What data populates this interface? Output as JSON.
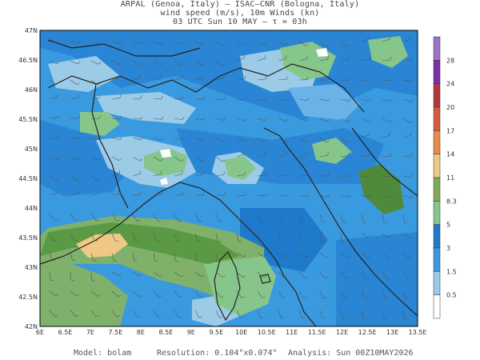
{
  "header": {
    "line1": "ARPAL (Genoa, Italy)  –  ISAC–CNR (Bologna, Italy)",
    "line2": "wind speed (m/s), 10m Winds (kn)",
    "line3": "03 UTC Sun 10 MAY  –  τ = 03h"
  },
  "map": {
    "lat_labels": [
      "47N",
      "46.5N",
      "46N",
      "45.5N",
      "45N",
      "44.5N",
      "44N",
      "43.5N",
      "43N",
      "42.5N",
      "42N"
    ],
    "lon_labels": [
      "6E",
      "6.5E",
      "7E",
      "7.5E",
      "8E",
      "8.5E",
      "9E",
      "9.5E",
      "10E",
      "10.5E",
      "11E",
      "11.5E",
      "12E",
      "12.5E",
      "13E",
      "13.5E"
    ]
  },
  "legend": {
    "levels": [
      "28",
      "24",
      "20",
      "17",
      "14",
      "11",
      "8.3",
      "5",
      "3",
      "1.5",
      "0.5"
    ],
    "colors": [
      "#9b74c8",
      "#7b2fa8",
      "#b03a3a",
      "#d65a3a",
      "#e98c4a",
      "#f0c886",
      "#7fa95a",
      "#86c68a",
      "#1f7acc",
      "#3a9ae0",
      "#9ccbe8",
      "#ffffff"
    ]
  },
  "footer": {
    "model": "Model: bolam",
    "resolution": "Resolution: 0.104°x0.074°",
    "analysis": "Analysis: Sun 00Z10MAY2026"
  }
}
